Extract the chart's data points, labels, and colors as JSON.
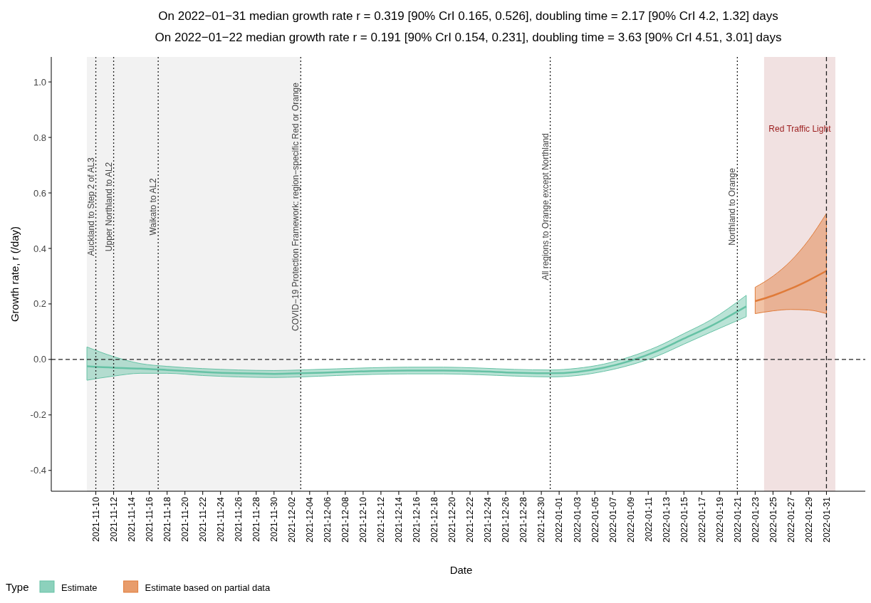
{
  "chart_data": {
    "type": "line",
    "title": "On 2022−01−31 median growth rate r = 0.319 [90% CrI 0.165, 0.526], doubling time = 2.17 [90% CrI 4.2, 1.32] days",
    "subtitle": "On 2022−01−22 median growth rate r = 0.191 [90% CrI 0.154, 0.231], doubling time = 3.63 [90% CrI 4.51, 3.01] days",
    "xlabel": "Date",
    "ylabel": "Growth rate, r (/day)",
    "legend_title": "Type",
    "legend": "bottom left",
    "xlim": [
      "2021-11-05",
      "2022-02-05"
    ],
    "xticks": [
      "2021-11-10",
      "2021-11-12",
      "2021-11-14",
      "2021-11-16",
      "2021-11-18",
      "2021-11-20",
      "2021-11-22",
      "2021-11-24",
      "2021-11-26",
      "2021-11-28",
      "2021-11-30",
      "2021-12-02",
      "2021-12-04",
      "2021-12-06",
      "2021-12-08",
      "2021-12-10",
      "2021-12-12",
      "2021-12-14",
      "2021-12-16",
      "2021-12-18",
      "2021-12-20",
      "2021-12-22",
      "2021-12-24",
      "2021-12-26",
      "2021-12-28",
      "2021-12-30",
      "2022-01-01",
      "2022-01-03",
      "2022-01-05",
      "2022-01-07",
      "2022-01-09",
      "2022-01-11",
      "2022-01-13",
      "2022-01-15",
      "2022-01-17",
      "2022-01-19",
      "2022-01-21",
      "2022-01-23",
      "2022-01-25",
      "2022-01-27",
      "2022-01-29",
      "2022-01-31"
    ],
    "ylim": [
      -0.475,
      1.09
    ],
    "yticks": [
      {
        "value": -0.4,
        "label": "-0.4"
      },
      {
        "value": -0.2,
        "label": "-0.2"
      },
      {
        "value": 0,
        "label": "0.0"
      },
      {
        "value": 0.2,
        "label": "0.2"
      },
      {
        "value": 0.4,
        "label": "0.4"
      },
      {
        "value": 0.6,
        "label": "0.6"
      },
      {
        "value": 0.8,
        "label": "0.8"
      },
      {
        "value": 1.0,
        "label": "1.0"
      }
    ],
    "grid": false,
    "bands": [
      {
        "axis": "x",
        "from": "2021-11-09",
        "to": "2021-12-03",
        "label": null,
        "color": "#f2f2f2"
      },
      {
        "axis": "x",
        "from": "2022-01-24",
        "to": "2022-02-01",
        "label": "Red Traffic Light",
        "color": "#f1e1e1"
      }
    ],
    "ref_lines": [
      {
        "axis": "y",
        "value": 0,
        "label": null,
        "line_style": "dashed"
      },
      {
        "axis": "x",
        "value": "2021-11-10",
        "label": "Auckland to Step 2 of AL3",
        "line_style": "dotted"
      },
      {
        "axis": "x",
        "value": "2021-11-12",
        "label": "Upper Northland to AL2",
        "line_style": "dotted"
      },
      {
        "axis": "x",
        "value": "2021-11-17",
        "label": "Waikato to AL2",
        "line_style": "dotted"
      },
      {
        "axis": "x",
        "value": "2021-12-03",
        "label": "COVID−19 Protection Framework: region−specific Red or Orange",
        "line_style": "dotted"
      },
      {
        "axis": "x",
        "value": "2021-12-31",
        "label": "All regions to Orange except Northland",
        "line_style": "dotted"
      },
      {
        "axis": "x",
        "value": "2022-01-21",
        "label": "Northland to Orange",
        "line_style": "dotted"
      },
      {
        "axis": "x",
        "value": "2022-01-31",
        "label": null,
        "line_style": "dashed"
      }
    ],
    "series": [
      {
        "name": "Estimate",
        "color": "#66c2a5",
        "x": [
          "2021-11-09",
          "2021-11-12",
          "2021-11-15",
          "2021-11-18",
          "2021-11-22",
          "2021-11-26",
          "2021-11-30",
          "2021-12-03",
          "2021-12-07",
          "2021-12-11",
          "2021-12-15",
          "2021-12-19",
          "2021-12-23",
          "2021-12-27",
          "2021-12-31",
          "2022-01-03",
          "2022-01-06",
          "2022-01-09",
          "2022-01-12",
          "2022-01-15",
          "2022-01-18",
          "2022-01-22"
        ],
        "values": [
          -0.025,
          -0.03,
          -0.033,
          -0.038,
          -0.045,
          -0.05,
          -0.052,
          -0.05,
          -0.046,
          -0.042,
          -0.04,
          -0.04,
          -0.043,
          -0.048,
          -0.05,
          -0.045,
          -0.03,
          -0.005,
          0.03,
          0.075,
          0.12,
          0.191
        ],
        "lower": [
          -0.075,
          -0.06,
          -0.05,
          -0.05,
          -0.058,
          -0.063,
          -0.065,
          -0.063,
          -0.058,
          -0.054,
          -0.052,
          -0.052,
          -0.055,
          -0.06,
          -0.063,
          -0.058,
          -0.043,
          -0.02,
          0.012,
          0.055,
          0.098,
          0.154
        ],
        "upper": [
          0.045,
          0.01,
          -0.015,
          -0.025,
          -0.033,
          -0.038,
          -0.04,
          -0.038,
          -0.034,
          -0.03,
          -0.028,
          -0.028,
          -0.031,
          -0.036,
          -0.038,
          -0.032,
          -0.017,
          0.01,
          0.046,
          0.093,
          0.142,
          0.231
        ]
      },
      {
        "name": "Estimate based on partial data",
        "color": "#e07b39",
        "x": [
          "2022-01-23",
          "2022-01-25",
          "2022-01-27",
          "2022-01-29",
          "2022-01-31"
        ],
        "values": [
          0.21,
          0.23,
          0.255,
          0.285,
          0.319
        ],
        "lower": [
          0.165,
          0.175,
          0.18,
          0.178,
          0.165
        ],
        "upper": [
          0.26,
          0.3,
          0.355,
          0.43,
          0.526
        ]
      }
    ]
  }
}
